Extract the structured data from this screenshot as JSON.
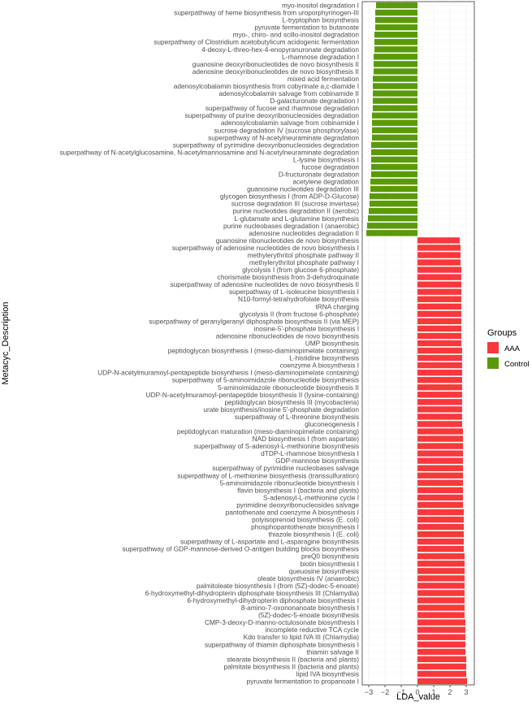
{
  "chart_data": {
    "type": "bar",
    "orientation": "horizontal",
    "xlabel": "LDA_value",
    "ylabel": "Metacyc_Description",
    "xlim": [
      -3.4,
      3.5
    ],
    "xticks": [
      -3,
      -2,
      -1,
      0,
      1,
      2,
      3
    ],
    "grid": true,
    "legend_title": "Groups",
    "legend_position": "right",
    "group_colors": {
      "AAA": "#f8383b",
      "Control": "#5a9a0a"
    },
    "groups": [
      "AAA",
      "Control"
    ],
    "bars": [
      {
        "label": "myo-inositol degradation I",
        "value": -2.55,
        "group": "Control"
      },
      {
        "label": "superpathway of heme biosynthesis from uroporphyrinogen-III",
        "value": -2.6,
        "group": "Control"
      },
      {
        "label": "L-tryptophan biosynthesis",
        "value": -2.6,
        "group": "Control"
      },
      {
        "label": "pyruvate fermentation to butanoate",
        "value": -2.6,
        "group": "Control"
      },
      {
        "label": "myo-, chiro- and scillo-inositol degradation",
        "value": -2.65,
        "group": "Control"
      },
      {
        "label": "superpathway of Clostridium acetobutylicum acidogenic fermentation",
        "value": -2.65,
        "group": "Control"
      },
      {
        "label": "4-deoxy-L-threo-hex-4-enopyranuronate degradation",
        "value": -2.65,
        "group": "Control"
      },
      {
        "label": "L-rhamnose degradation I",
        "value": -2.7,
        "group": "Control"
      },
      {
        "label": "guanosine deoxyribonucleotides de novo biosynthesis II",
        "value": -2.7,
        "group": "Control"
      },
      {
        "label": "adenosine deoxyribonucleotides de novo biosynthesis II",
        "value": -2.7,
        "group": "Control"
      },
      {
        "label": "mixed acid fermentation",
        "value": -2.75,
        "group": "Control"
      },
      {
        "label": "adenosylcobalamin biosynthesis from cobyrinate a,c-diamide I",
        "value": -2.75,
        "group": "Control"
      },
      {
        "label": "adenosylcobalamin salvage from cobinamide II",
        "value": -2.75,
        "group": "Control"
      },
      {
        "label": "D-galacturonate degradation I",
        "value": -2.75,
        "group": "Control"
      },
      {
        "label": "superpathway of fucose and rhamnose degradation",
        "value": -2.75,
        "group": "Control"
      },
      {
        "label": "superpathway of purine deoxyribonucleosides degradation",
        "value": -2.8,
        "group": "Control"
      },
      {
        "label": "adenosylcobalamin salvage from cobinamide I",
        "value": -2.8,
        "group": "Control"
      },
      {
        "label": "sucrose degradation IV (sucrose phosphorylase)",
        "value": -2.8,
        "group": "Control"
      },
      {
        "label": "superpathway of N-acetylneuraminate degradation",
        "value": -2.8,
        "group": "Control"
      },
      {
        "label": "superpathway of pyrimidine deoxyribonucleosides degradation",
        "value": -2.85,
        "group": "Control"
      },
      {
        "label": "superpathway of N-acetylglucosamine, N-acetylmannosamine and N-acetylneuraminate degradation",
        "value": -2.85,
        "group": "Control"
      },
      {
        "label": "L-lysine biosynthesis I",
        "value": -2.85,
        "group": "Control"
      },
      {
        "label": "fucose degradation",
        "value": -2.85,
        "group": "Control"
      },
      {
        "label": "D-fructuronate degradation",
        "value": -2.85,
        "group": "Control"
      },
      {
        "label": "acetylene degradation",
        "value": -2.9,
        "group": "Control"
      },
      {
        "label": "guanosine nucleotides degradation III",
        "value": -2.9,
        "group": "Control"
      },
      {
        "label": "glycogen biosynthesis I (from ADP-D-Glucose)",
        "value": -2.95,
        "group": "Control"
      },
      {
        "label": "sucrose degradation III (sucrose invertase)",
        "value": -2.95,
        "group": "Control"
      },
      {
        "label": "purine nucleotides degradation II (aerobic)",
        "value": -3.0,
        "group": "Control"
      },
      {
        "label": "L-glutamate and L-glutamine biosynthesis",
        "value": -3.05,
        "group": "Control"
      },
      {
        "label": "purine nucleobases degradation I (anaerobic)",
        "value": -3.1,
        "group": "Control"
      },
      {
        "label": "adenosine nucleotides degradation II",
        "value": -3.15,
        "group": "Control"
      },
      {
        "label": "guanosine ribonucleotides de novo biosynthesis",
        "value": 2.6,
        "group": "AAA"
      },
      {
        "label": "superpathway of adenosine nucleotides de novo biosynthesis I",
        "value": 2.65,
        "group": "AAA"
      },
      {
        "label": "methylerythritol phosphate pathway II",
        "value": 2.65,
        "group": "AAA"
      },
      {
        "label": "methylerythritol phosphate pathway I",
        "value": 2.65,
        "group": "AAA"
      },
      {
        "label": "glycolysis I (from glucose 6-phosphate)",
        "value": 2.7,
        "group": "AAA"
      },
      {
        "label": "chorismate biosynthesis from 3-dehydroquinate",
        "value": 2.7,
        "group": "AAA"
      },
      {
        "label": "superpathway of adenosine nucleotides de novo biosynthesis II",
        "value": 2.7,
        "group": "AAA"
      },
      {
        "label": "superpathway of L-isoleucine biosynthesis I",
        "value": 2.7,
        "group": "AAA"
      },
      {
        "label": "N10-formyl-tetrahydrofolate biosynthesis",
        "value": 2.7,
        "group": "AAA"
      },
      {
        "label": "tRNA charging",
        "value": 2.7,
        "group": "AAA"
      },
      {
        "label": "glycolysis II (from fructose 6-phosphate)",
        "value": 2.7,
        "group": "AAA"
      },
      {
        "label": "superpathway of geranylgeranyl diphosphate biosynthesis II (via MEP)",
        "value": 2.7,
        "group": "AAA"
      },
      {
        "label": "inosine-5'-phosphate biosynthesis I",
        "value": 2.7,
        "group": "AAA"
      },
      {
        "label": "adenosine ribonucleotides de novo biosynthesis",
        "value": 2.7,
        "group": "AAA"
      },
      {
        "label": "UMP biosynthesis",
        "value": 2.7,
        "group": "AAA"
      },
      {
        "label": "peptidoglycan biosynthesis I (meso-diaminopimelate containing)",
        "value": 2.75,
        "group": "AAA"
      },
      {
        "label": "L-histidine biosynthesis",
        "value": 2.75,
        "group": "AAA"
      },
      {
        "label": "coenzyme A biosynthesis I",
        "value": 2.75,
        "group": "AAA"
      },
      {
        "label": "UDP-N-acetylmuramoyl-pentapeptide biosynthesis I (meso-diaminopimelate containing)",
        "value": 2.75,
        "group": "AAA"
      },
      {
        "label": "superpathway of 5-aminoimidazole ribonucleotide biosynthesis",
        "value": 2.75,
        "group": "AAA"
      },
      {
        "label": "5-aminoimidazole ribonucleotide biosynthesis II",
        "value": 2.75,
        "group": "AAA"
      },
      {
        "label": "UDP-N-acetylmuramoyl-pentapeptide biosynthesis II (lysine-containing)",
        "value": 2.75,
        "group": "AAA"
      },
      {
        "label": "peptidoglycan biosynthesis III (mycobacteria)",
        "value": 2.75,
        "group": "AAA"
      },
      {
        "label": "urate biosynthesis/inosine 5'-phosphate degradation",
        "value": 2.75,
        "group": "AAA"
      },
      {
        "label": "superpathway of L-threonine biosynthesis",
        "value": 2.75,
        "group": "AAA"
      },
      {
        "label": "gluconeogenesis I",
        "value": 2.75,
        "group": "AAA"
      },
      {
        "label": "peptidoglycan maturation (meso-diaminopimelate containing)",
        "value": 2.8,
        "group": "AAA"
      },
      {
        "label": "NAD biosynthesis I (from aspartate)",
        "value": 2.8,
        "group": "AAA"
      },
      {
        "label": "superpathway of S-adenosyl-L-methionine biosynthesis",
        "value": 2.8,
        "group": "AAA"
      },
      {
        "label": "dTDP-L-rhamnose biosynthesis I",
        "value": 2.8,
        "group": "AAA"
      },
      {
        "label": "GDP-mannose biosynthesis",
        "value": 2.8,
        "group": "AAA"
      },
      {
        "label": "superpathway of pyrimidine nucleobases salvage",
        "value": 2.8,
        "group": "AAA"
      },
      {
        "label": "superpathway of L-methionine biosynthesis (transsulfuration)",
        "value": 2.8,
        "group": "AAA"
      },
      {
        "label": "5-aminoimidazole ribonucleotide biosynthesis I",
        "value": 2.8,
        "group": "AAA"
      },
      {
        "label": "flavin biosynthesis I (bacteria and plants)",
        "value": 2.8,
        "group": "AAA"
      },
      {
        "label": "S-adenosyl-L-methionine cycle I",
        "value": 2.8,
        "group": "AAA"
      },
      {
        "label": "pyrimidine deoxyribonucleosides salvage",
        "value": 2.8,
        "group": "AAA"
      },
      {
        "label": "pantothenate and coenzyme A biosynthesis I",
        "value": 2.85,
        "group": "AAA"
      },
      {
        "label": "polyisoprenoid biosynthesis (E. coli)",
        "value": 2.85,
        "group": "AAA"
      },
      {
        "label": "phosphopantothenate biosynthesis I",
        "value": 2.85,
        "group": "AAA"
      },
      {
        "label": "thiazole biosynthesis I (E. coli)",
        "value": 2.85,
        "group": "AAA"
      },
      {
        "label": "superpathway of L-aspartate and L-asparagine biosynthesis",
        "value": 2.85,
        "group": "AAA"
      },
      {
        "label": "superpathway of GDP-mannose-derived O-antigen building blocks biosynthesis",
        "value": 2.85,
        "group": "AAA"
      },
      {
        "label": "preQ0 biosynthesis",
        "value": 2.9,
        "group": "AAA"
      },
      {
        "label": "biotin biosynthesis I",
        "value": 2.9,
        "group": "AAA"
      },
      {
        "label": "queuosine biosynthesis",
        "value": 2.9,
        "group": "AAA"
      },
      {
        "label": "oleate biosynthesis IV (anaerobic)",
        "value": 2.9,
        "group": "AAA"
      },
      {
        "label": "palmitoleate biosynthesis I (from (5Z)-dodec-5-enoate)",
        "value": 2.9,
        "group": "AAA"
      },
      {
        "label": "6-hydroxymethyl-dihydropterin diphosphate biosynthesis III (Chlamydia)",
        "value": 2.9,
        "group": "AAA"
      },
      {
        "label": "6-hydroxymethyl-dihydropterin diphosphate biosynthesis I",
        "value": 2.9,
        "group": "AAA"
      },
      {
        "label": "8-amino-7-oxononanoate biosynthesis I",
        "value": 2.9,
        "group": "AAA"
      },
      {
        "label": "(5Z)-dodec-5-enoate biosynthesis",
        "value": 2.9,
        "group": "AAA"
      },
      {
        "label": "CMP-3-deoxy-D-manno-octulosonate biosynthesis I",
        "value": 2.95,
        "group": "AAA"
      },
      {
        "label": "incomplete reductive TCA cycle",
        "value": 2.95,
        "group": "AAA"
      },
      {
        "label": "Kdo transfer to lipid IVA III (Chlamydia)",
        "value": 2.95,
        "group": "AAA"
      },
      {
        "label": "superpathway of thiamin diphosphate biosynthesis I",
        "value": 2.95,
        "group": "AAA"
      },
      {
        "label": "thiamin salvage II",
        "value": 2.95,
        "group": "AAA"
      },
      {
        "label": "stearate biosynthesis II (bacteria and plants)",
        "value": 3.0,
        "group": "AAA"
      },
      {
        "label": "palmitate biosynthesis II (bacteria and plants)",
        "value": 3.0,
        "group": "AAA"
      },
      {
        "label": "lipid IVA biosynthesis",
        "value": 3.0,
        "group": "AAA"
      },
      {
        "label": "pyruvate fermentation to propanoate I",
        "value": 3.05,
        "group": "AAA"
      }
    ]
  }
}
